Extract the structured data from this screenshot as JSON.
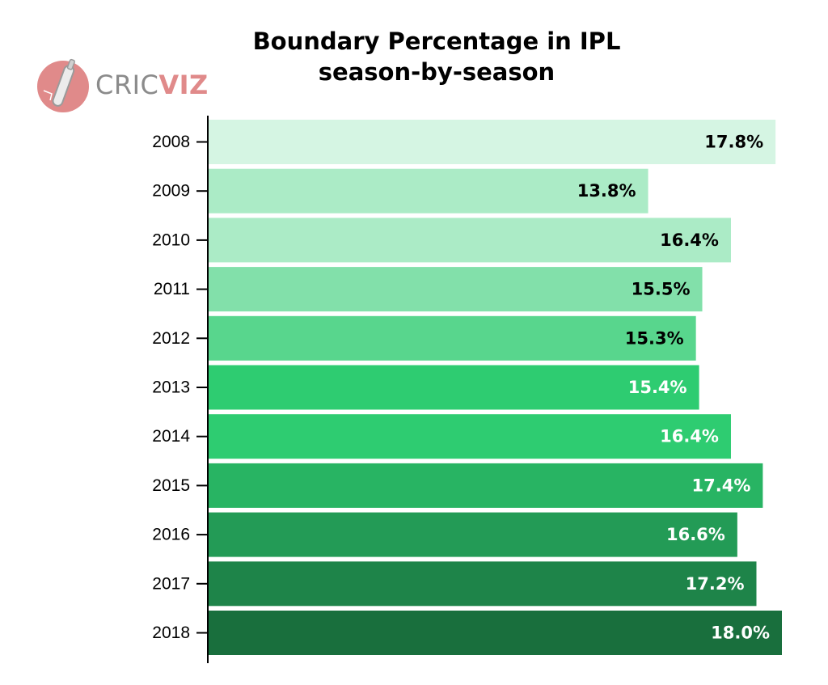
{
  "brand": {
    "part1": "CRIC",
    "part2": "VIZ",
    "colors": {
      "part1": "#8b8b8b",
      "part2": "#e08a8a",
      "badge": "#e08a8a"
    }
  },
  "chart_data": {
    "type": "bar",
    "orientation": "horizontal",
    "title_lines": [
      "Boundary Percentage in IPL",
      "season-by-season"
    ],
    "xlabel": "",
    "ylabel": "",
    "categories": [
      "2008",
      "2009",
      "2010",
      "2011",
      "2012",
      "2013",
      "2014",
      "2015",
      "2016",
      "2017",
      "2018"
    ],
    "values": [
      17.8,
      13.8,
      16.4,
      15.5,
      15.3,
      15.4,
      16.4,
      17.4,
      16.6,
      17.2,
      18.0
    ],
    "labels": [
      "17.8%",
      "13.8%",
      "16.4%",
      "15.5%",
      "15.3%",
      "15.4%",
      "16.4%",
      "17.4%",
      "16.6%",
      "17.2%",
      "18.0%"
    ],
    "bar_colors": [
      "#d5f5e3",
      "#abebc6",
      "#abebc6",
      "#82e0aa",
      "#58d68d",
      "#2ecc71",
      "#2ecc71",
      "#28b463",
      "#239b56",
      "#1e8449",
      "#196f3d"
    ],
    "label_colors": [
      "#000000",
      "#000000",
      "#000000",
      "#000000",
      "#000000",
      "#ffffff",
      "#ffffff",
      "#ffffff",
      "#ffffff",
      "#ffffff",
      "#ffffff"
    ],
    "xlim": [
      0,
      18.0
    ],
    "grid": false,
    "legend": "none"
  }
}
